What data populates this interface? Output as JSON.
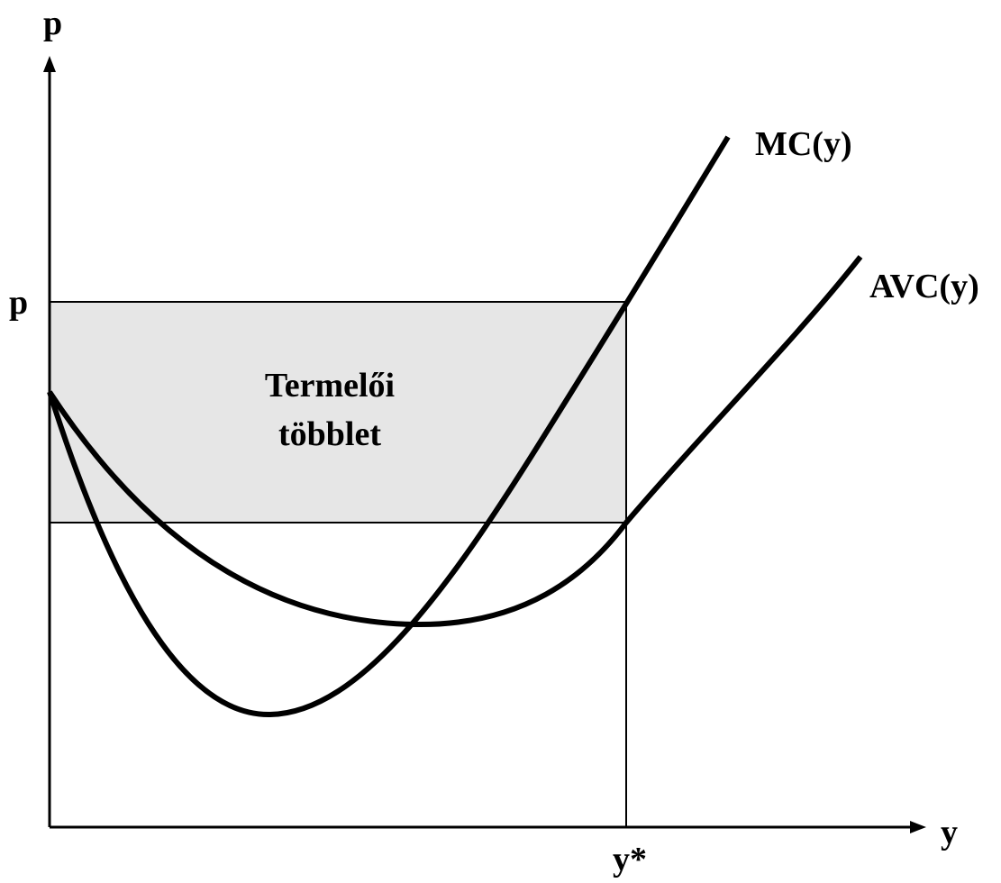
{
  "axes": {
    "y_label": "p",
    "x_label": "y"
  },
  "levels": {
    "price": "p",
    "quantity": "y*"
  },
  "curves": {
    "mc": "MC(y)",
    "avc": "AVC(y)"
  },
  "area": {
    "lines": [
      "Termelői",
      "többlet"
    ]
  }
}
